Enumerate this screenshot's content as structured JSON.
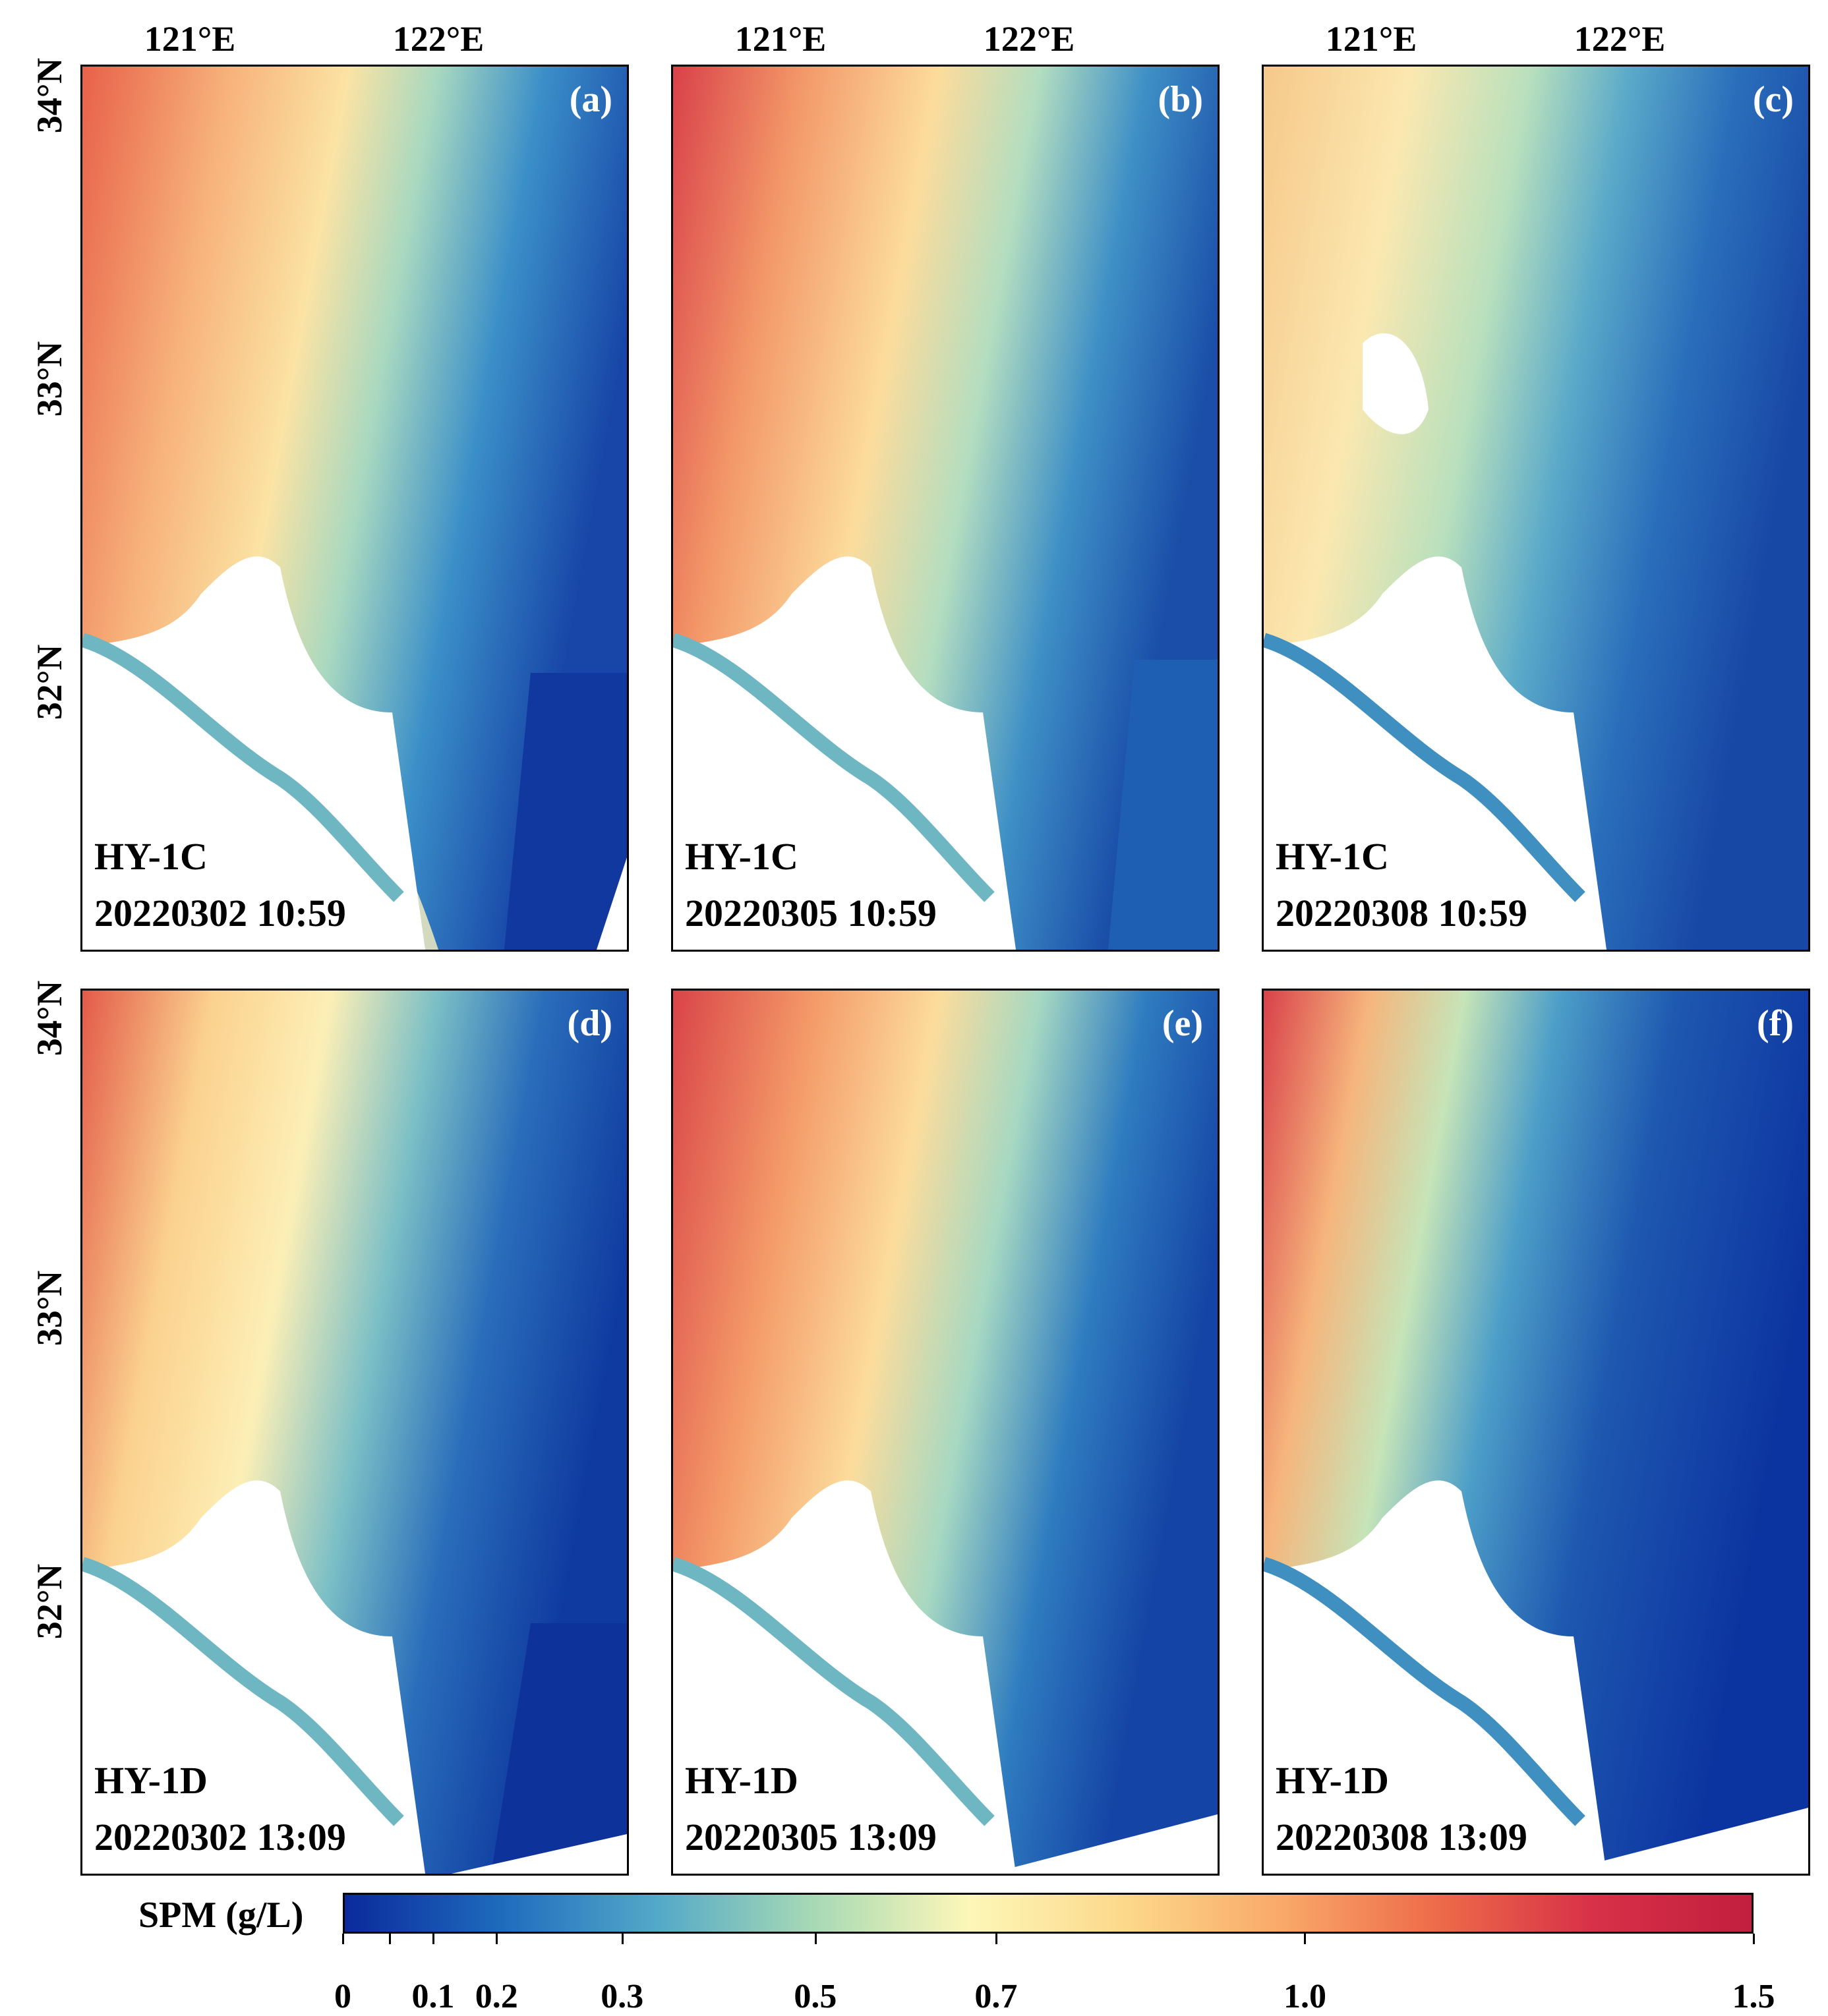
{
  "figure": {
    "lon_labels": [
      "121°E",
      "122°E"
    ],
    "lat_labels": [
      "34°N",
      "33°N",
      "32°N"
    ],
    "panels": [
      {
        "id": "a",
        "label": "(a)",
        "satellite": "HY-1C",
        "datetime": "20220302 10:59"
      },
      {
        "id": "b",
        "label": "(b)",
        "satellite": "HY-1C",
        "datetime": "20220305 10:59"
      },
      {
        "id": "c",
        "label": "(c)",
        "satellite": "HY-1C",
        "datetime": "20220308 10:59"
      },
      {
        "id": "d",
        "label": "(d)",
        "satellite": "HY-1D",
        "datetime": "20220302 13:09"
      },
      {
        "id": "e",
        "label": "(e)",
        "satellite": "HY-1D",
        "datetime": "20220305 13:09"
      },
      {
        "id": "f",
        "label": "(f)",
        "satellite": "HY-1D",
        "datetime": "20220308 13:09"
      }
    ],
    "colorbar": {
      "title": "SPM (g/L)",
      "ticks": [
        "0",
        "0.1",
        "0.2",
        "0.3",
        "0.5",
        "0.7",
        "1.0",
        "1.5"
      ],
      "tick_values": [
        0,
        0.05,
        0.1,
        0.2,
        0.3,
        0.5,
        0.7,
        1.0,
        1.5
      ],
      "colors": [
        "#0b2a9c",
        "#1e6bbd",
        "#53a9c8",
        "#a7d9b5",
        "#fdf7b8",
        "#fcd88a",
        "#f9a86a",
        "#ed6a48",
        "#d73048",
        "#c21f3e"
      ]
    }
  }
}
